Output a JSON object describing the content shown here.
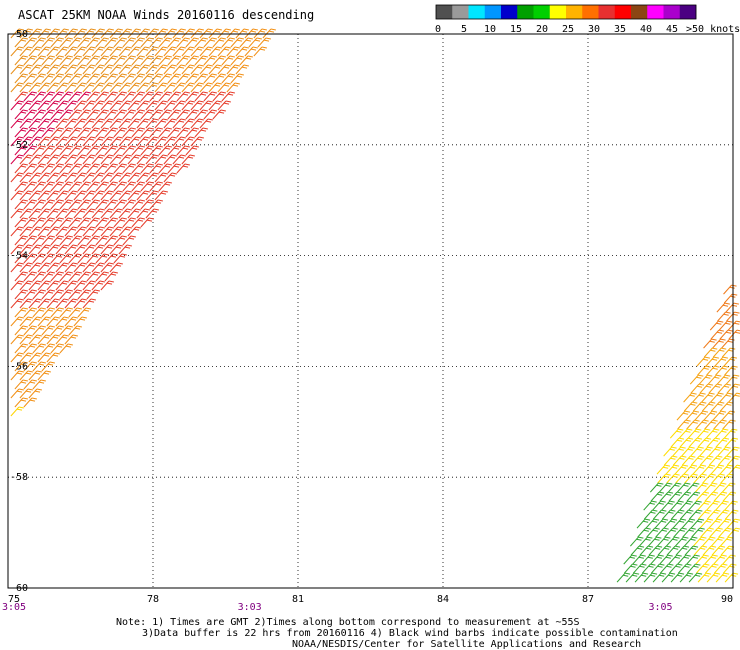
{
  "title": "ASCAT 25KM NOAA Winds 20160116 descending",
  "legend": {
    "unit": "knots",
    "tick_labels": [
      "0",
      "5",
      "10",
      "15",
      "20",
      "25",
      "30",
      "35",
      "40",
      "45",
      ">50 knots"
    ],
    "colors": [
      "#505050",
      "#9a9a9a",
      "#00e6ff",
      "#0096ff",
      "#0000cc",
      "#00a000",
      "#00d000",
      "#ffff00",
      "#ffb300",
      "#ff7000",
      "#e83030",
      "#ff0000",
      "#8b4513",
      "#ff00ff",
      "#aa00cc",
      "#4b0082"
    ]
  },
  "axes": {
    "x_ticks": [
      {
        "value": 75,
        "label": "75"
      },
      {
        "value": 78,
        "label": "78"
      },
      {
        "value": 81,
        "label": "81"
      },
      {
        "value": 84,
        "label": "84"
      },
      {
        "value": 87,
        "label": "87"
      },
      {
        "value": 90,
        "label": "90"
      }
    ],
    "y_ticks": [
      {
        "value": -50,
        "label": "-50"
      },
      {
        "value": -52,
        "label": "-52"
      },
      {
        "value": -54,
        "label": "-54"
      },
      {
        "value": -56,
        "label": "-56"
      },
      {
        "value": -58,
        "label": "-58"
      },
      {
        "value": -60,
        "label": "-60"
      }
    ],
    "lon_range": [
      75,
      90
    ],
    "lat_range": [
      -60,
      -50
    ],
    "grid": "dotted"
  },
  "pass_times": [
    {
      "lon": 75,
      "label": "3:05"
    },
    {
      "lon": 80,
      "label": "3:03"
    },
    {
      "lon": 88.5,
      "label": "3:05"
    }
  ],
  "swaths": [
    {
      "name": "west",
      "edge_top_lon": 80.4,
      "edge_bottom_lat": -57.2,
      "dominant": "orange-red",
      "band_colors": [
        "#d6004a",
        "#e63c2b",
        "#ee6a1a",
        "#f29015",
        "#ffd400"
      ]
    },
    {
      "name": "east",
      "apex_lat": -54.1,
      "base_lon_from": 87.5,
      "dominant": "yellow-green",
      "band_colors": [
        "#e83a2a",
        "#f07a1a",
        "#f5a314",
        "#ffdd00",
        "#33a633"
      ]
    }
  ],
  "notes": {
    "line1": "Note: 1) Times are GMT 2)Times along bottom correspond to measurement at ~55S",
    "line2": "3)Data buffer is 22 hrs from 20160116 4) Black wind barbs indicate possible contamination",
    "line3": "NOAA/NESDIS/Center for Satellite Applications and Research"
  }
}
